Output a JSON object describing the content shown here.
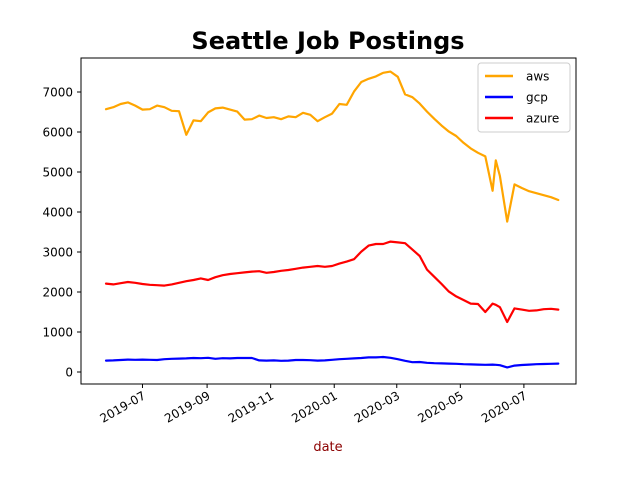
{
  "chart_data": {
    "type": "line",
    "title": "Seattle Job Postings",
    "xlabel": "date",
    "ylabel": "",
    "xlim": [
      "2019-05-03",
      "2020-08-20"
    ],
    "ylim": [
      -300,
      7850
    ],
    "xticks": [
      {
        "date": "2019-07-01",
        "label": "2019-07"
      },
      {
        "date": "2019-09-01",
        "label": "2019-09"
      },
      {
        "date": "2019-11-01",
        "label": "2019-11"
      },
      {
        "date": "2020-01-01",
        "label": "2020-01"
      },
      {
        "date": "2020-03-01",
        "label": "2020-03"
      },
      {
        "date": "2020-05-01",
        "label": "2020-05"
      },
      {
        "date": "2020-07-01",
        "label": "2020-07"
      }
    ],
    "yticks": [
      0,
      1000,
      2000,
      3000,
      4000,
      5000,
      6000,
      7000
    ],
    "grid": false,
    "legend": "top-right",
    "x": [
      "2019-05-27",
      "2019-06-03",
      "2019-06-10",
      "2019-06-17",
      "2019-06-24",
      "2019-07-01",
      "2019-07-08",
      "2019-07-15",
      "2019-07-22",
      "2019-07-29",
      "2019-08-05",
      "2019-08-12",
      "2019-08-19",
      "2019-08-26",
      "2019-09-02",
      "2019-09-09",
      "2019-09-16",
      "2019-09-23",
      "2019-09-30",
      "2019-10-07",
      "2019-10-14",
      "2019-10-21",
      "2019-10-28",
      "2019-11-04",
      "2019-11-11",
      "2019-11-18",
      "2019-11-25",
      "2019-12-02",
      "2019-12-09",
      "2019-12-16",
      "2019-12-23",
      "2019-12-30",
      "2020-01-06",
      "2020-01-13",
      "2020-01-20",
      "2020-01-27",
      "2020-02-03",
      "2020-02-10",
      "2020-02-17",
      "2020-02-24",
      "2020-03-02",
      "2020-03-09",
      "2020-03-16",
      "2020-03-23",
      "2020-03-30",
      "2020-04-06",
      "2020-04-13",
      "2020-04-20",
      "2020-04-27",
      "2020-05-04",
      "2020-05-11",
      "2020-05-18",
      "2020-05-25",
      "2020-06-01",
      "2020-06-04",
      "2020-06-08",
      "2020-06-15",
      "2020-06-22",
      "2020-06-29",
      "2020-07-06",
      "2020-07-13",
      "2020-07-20",
      "2020-07-27",
      "2020-08-03"
    ],
    "series": [
      {
        "name": "aws",
        "color": "#ffa500",
        "values": [
          6570,
          6620,
          6700,
          6740,
          6660,
          6560,
          6570,
          6660,
          6620,
          6530,
          6520,
          5930,
          6290,
          6270,
          6490,
          6590,
          6610,
          6560,
          6510,
          6310,
          6320,
          6410,
          6350,
          6370,
          6320,
          6390,
          6370,
          6480,
          6430,
          6270,
          6370,
          6460,
          6700,
          6680,
          7010,
          7250,
          7330,
          7390,
          7480,
          7510,
          7380,
          6940,
          6870,
          6710,
          6510,
          6330,
          6160,
          6010,
          5900,
          5730,
          5590,
          5480,
          5390,
          4530,
          5290,
          4900,
          3760,
          4690,
          4600,
          4520,
          4470,
          4420,
          4370,
          4300
        ]
      },
      {
        "name": "gcp",
        "color": "#0000ff",
        "values": [
          285,
          290,
          300,
          310,
          305,
          310,
          305,
          300,
          320,
          330,
          335,
          340,
          350,
          345,
          355,
          330,
          345,
          340,
          350,
          350,
          350,
          290,
          285,
          290,
          280,
          285,
          300,
          300,
          295,
          285,
          290,
          305,
          320,
          330,
          340,
          350,
          365,
          365,
          375,
          355,
          320,
          280,
          245,
          250,
          230,
          220,
          215,
          210,
          205,
          195,
          190,
          185,
          180,
          185,
          180,
          170,
          115,
          160,
          175,
          185,
          195,
          200,
          205,
          210
        ]
      },
      {
        "name": "azure",
        "color": "#ff0000",
        "values": [
          2210,
          2190,
          2220,
          2250,
          2230,
          2200,
          2180,
          2170,
          2160,
          2190,
          2230,
          2270,
          2300,
          2340,
          2300,
          2370,
          2420,
          2450,
          2470,
          2490,
          2510,
          2520,
          2480,
          2500,
          2530,
          2550,
          2580,
          2610,
          2630,
          2650,
          2630,
          2650,
          2710,
          2760,
          2820,
          3010,
          3160,
          3200,
          3200,
          3260,
          3240,
          3220,
          3060,
          2900,
          2560,
          2380,
          2200,
          2010,
          1890,
          1800,
          1710,
          1700,
          1500,
          1710,
          1680,
          1620,
          1250,
          1590,
          1560,
          1530,
          1540,
          1570,
          1580,
          1560
        ]
      }
    ]
  }
}
